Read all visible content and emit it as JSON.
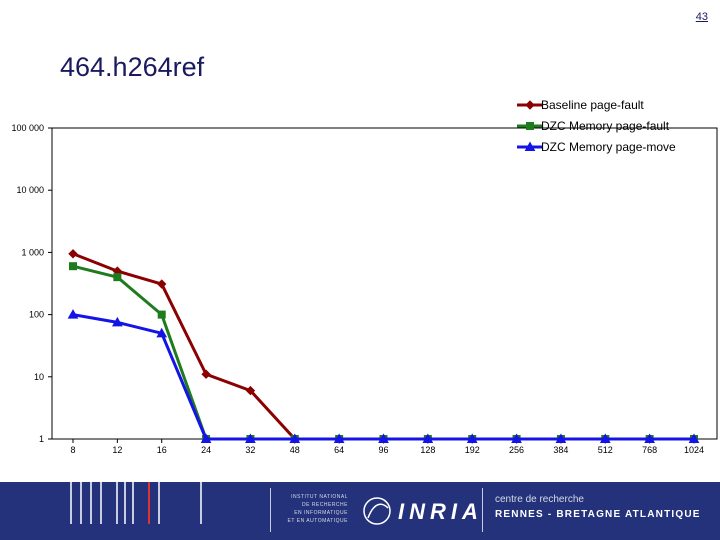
{
  "page_number": "43",
  "slide_title": "464.h264ref",
  "footer": {
    "institute_lines": [
      "INSTITUT NATIONAL",
      "DE RECHERCHE",
      "EN INFORMATIQUE",
      "ET EN AUTOMATIQUE"
    ],
    "logo_text": "INRIA",
    "centre_label": "centre de recherche",
    "centre_name": "RENNES - BRETAGNE ATLANTIQUE"
  },
  "chart_data": {
    "type": "line",
    "title": "",
    "xlabel": "",
    "ylabel": "",
    "y_scale": "log",
    "ylim": [
      1,
      100000
    ],
    "y_tick_labels": [
      "100 000",
      "10 000",
      "1 000",
      "100",
      "10",
      "1"
    ],
    "categories": [
      "8",
      "12",
      "16",
      "24",
      "32",
      "48",
      "64",
      "96",
      "128",
      "192",
      "256",
      "384",
      "512",
      "768",
      "1024"
    ],
    "grid": false,
    "legend_position": "top-right",
    "series": [
      {
        "name": "Baseline page-fault",
        "color": "#8b0000",
        "marker": "diamond",
        "values": [
          950,
          500,
          310,
          11,
          6,
          1,
          1,
          1,
          1,
          1,
          1,
          1,
          1,
          1,
          1
        ]
      },
      {
        "name": "DZC Memory page-fault",
        "color": "#1e7b1e",
        "marker": "square",
        "values": [
          600,
          400,
          100,
          1,
          1,
          1,
          1,
          1,
          1,
          1,
          1,
          1,
          1,
          1,
          1
        ]
      },
      {
        "name": "DZC Memory page-move",
        "color": "#1414e6",
        "marker": "triangle",
        "values": [
          100,
          75,
          50,
          1,
          1,
          1,
          1,
          1,
          1,
          1,
          1,
          1,
          1,
          1,
          1
        ]
      }
    ]
  }
}
